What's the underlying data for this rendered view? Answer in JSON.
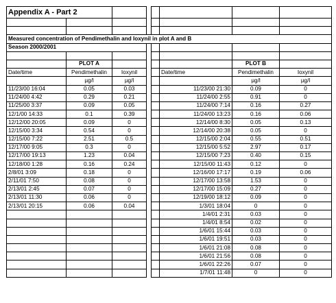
{
  "document": {
    "title": "Appendix A - Part 2",
    "heading": "Measured concentration of Pendimethalin and Ioxynil in plot A and B",
    "season": "Season 2000/2001"
  },
  "plot_a": {
    "label": "PLOT A",
    "col_datetime": "Date/time",
    "col_pendimethalin": "Pendimethalin",
    "col_ioxynil": "Ioxynil",
    "unit_pendimethalin": "µg/l",
    "unit_ioxynil": "µg/l",
    "rows": [
      [
        "11/23/00 16:04",
        "0.05",
        "0.03"
      ],
      [
        "11/24/00 4:42",
        "0.29",
        "0.21"
      ],
      [
        "11/25/00 3:37",
        "0.09",
        "0.05"
      ],
      [
        "12/1/00 14:33",
        "0.1",
        "0.39"
      ],
      [
        "12/12/00 20:05",
        "0.09",
        "0"
      ],
      [
        "12/15/00 3:34",
        "0.54",
        "0"
      ],
      [
        "12/15/00 7:22",
        "2.51",
        "0.5"
      ],
      [
        "12/17/00 9:05",
        "0.3",
        "0"
      ],
      [
        "12/17/00 19:13",
        "1.23",
        "0.04"
      ],
      [
        "12/18/00 1:28",
        "0.16",
        "0.24"
      ],
      [
        "2/8/01 3:09",
        "0.18",
        "0"
      ],
      [
        "2/11/01 7:50",
        "0.08",
        "0"
      ],
      [
        "2/13/01 2:45",
        "0.07",
        "0"
      ],
      [
        "2/13/01 11:30",
        "0.06",
        "0"
      ],
      [
        "2/13/01 20:15",
        "0.06",
        "0.04"
      ]
    ]
  },
  "plot_b": {
    "label": "PLOT B",
    "col_datetime": "Date/time",
    "col_pendimethalin": "Pendimethalin",
    "col_ioxynil": "Ioxynil",
    "unit_pendimethalin": "µg/l",
    "unit_ioxynil": "µg/l",
    "rows": [
      [
        "11/23/00 21:30",
        "0.09",
        "0"
      ],
      [
        "11/24/00 2:55",
        "0.91",
        "0"
      ],
      [
        "11/24/00 7:14",
        "0.16",
        "0.27"
      ],
      [
        "11/24/00 13:23",
        "0.16",
        "0.06"
      ],
      [
        "12/14/00 8:30",
        "0.05",
        "0.13"
      ],
      [
        "12/14/00 20:38",
        "0.05",
        "0"
      ],
      [
        "12/15/00 2:04",
        "0.55",
        "0.51"
      ],
      [
        "12/15/00 5:52",
        "2.97",
        "0.17"
      ],
      [
        "12/15/00 7:23",
        "0.40",
        "0.15"
      ],
      [
        "12/15/00 11:43",
        "0.12",
        "0"
      ],
      [
        "12/16/00 17:17",
        "0.19",
        "0.06"
      ],
      [
        "12/17/00 13:58",
        "1.53",
        "0"
      ],
      [
        "12/17/00 15:09",
        "0.27",
        "0"
      ],
      [
        "12/19/00 18:12",
        "0.09",
        "0"
      ],
      [
        "1/3/01 18:04",
        "0",
        "0"
      ],
      [
        "1/4/01 2:31",
        "0.03",
        "0"
      ],
      [
        "1/4/01 8:54",
        "0.02",
        "0"
      ],
      [
        "1/6/01 15:44",
        "0.03",
        "0"
      ],
      [
        "1/6/01 19:51",
        "0.03",
        "0"
      ],
      [
        "1/6/01 21:08",
        "0.08",
        "0"
      ],
      [
        "1/6/01 21:56",
        "0.08",
        "0"
      ],
      [
        "1/6/01 22:26",
        "0.07",
        "0"
      ],
      [
        "1/7/01 11:48",
        "0",
        "0"
      ]
    ]
  }
}
